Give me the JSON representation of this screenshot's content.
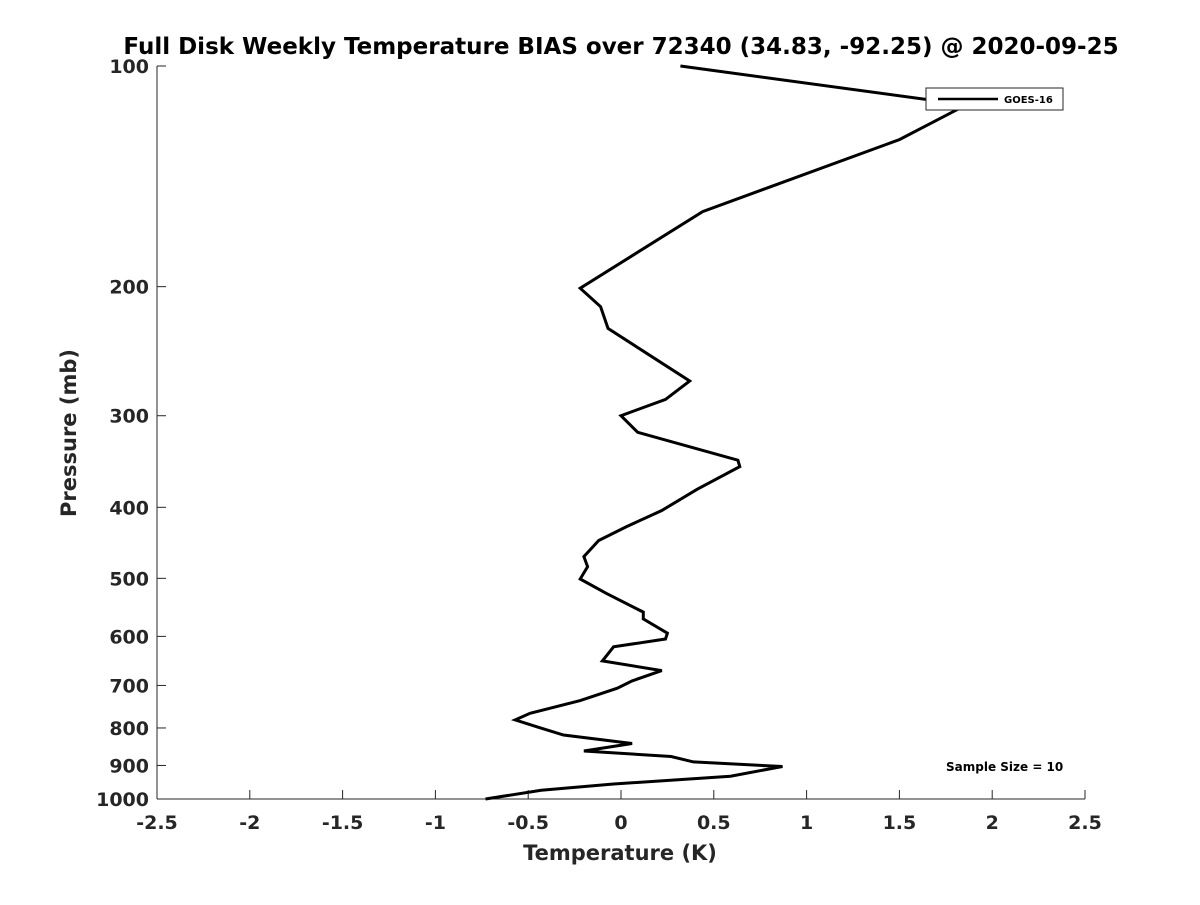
{
  "chart_data": {
    "type": "line",
    "title": "Full Disk Weekly Temperature BIAS over 72340 (34.83, -92.25) @ 2020-09-25",
    "xlabel": "Temperature (K)",
    "ylabel": "Pressure (mb)",
    "xlim": [
      -2.5,
      2.5
    ],
    "ylim": [
      1000,
      100
    ],
    "yscale": "log",
    "y_reversed": true,
    "x_ticks": [
      "-2.5",
      "-2",
      "-1.5",
      "-1",
      "-0.5",
      "0",
      "0.5",
      "1",
      "1.5",
      "2",
      "2.5"
    ],
    "y_ticks": [
      "100",
      "200",
      "300",
      "400",
      "500",
      "600",
      "700",
      "800",
      "900",
      "1000"
    ],
    "grid": false,
    "legend": {
      "position": "top-right",
      "entries": [
        "GOES-16"
      ]
    },
    "annotation": "Sample Size = 10",
    "series": [
      {
        "name": "GOES-16",
        "color": "#000000",
        "x": [
          0.32,
          1.86,
          1.5,
          0.44,
          -0.22,
          -0.11,
          -0.07,
          0.37,
          0.24,
          0.0,
          0.09,
          0.63,
          0.64,
          0.41,
          0.22,
          0.03,
          -0.12,
          -0.2,
          -0.18,
          -0.22,
          -0.08,
          0.12,
          0.12,
          0.25,
          0.24,
          -0.04,
          -0.1,
          0.22,
          0.06,
          -0.02,
          -0.22,
          -0.49,
          -0.57,
          -0.44,
          -0.31,
          0.06,
          -0.2,
          0.27,
          0.39,
          0.87,
          0.59,
          -0.04,
          -0.43,
          -0.73
        ],
        "y": [
          100,
          113,
          126,
          158,
          201,
          213,
          228,
          269,
          285,
          300,
          316,
          345,
          352,
          378,
          404,
          425,
          444,
          467,
          482,
          501,
          524,
          556,
          568,
          594,
          605,
          620,
          648,
          668,
          690,
          706,
          734,
          764,
          780,
          799,
          818,
          840,
          860,
          875,
          890,
          903,
          931,
          954,
          973,
          1000
        ]
      }
    ]
  }
}
